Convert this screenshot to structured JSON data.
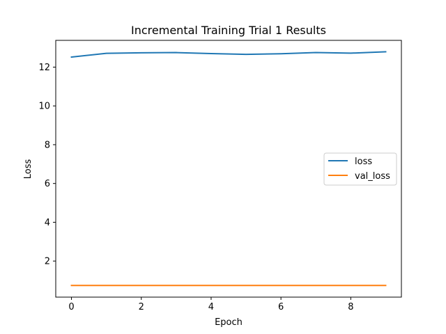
{
  "chart_data": {
    "type": "line",
    "title": "Incremental Training Trial 1 Results",
    "xlabel": "Epoch",
    "ylabel": "Loss",
    "x": [
      0,
      1,
      2,
      3,
      4,
      5,
      6,
      7,
      8,
      9
    ],
    "series": [
      {
        "name": "loss",
        "color": "#1f77b4",
        "values": [
          12.52,
          12.71,
          12.74,
          12.75,
          12.7,
          12.66,
          12.69,
          12.75,
          12.72,
          12.79
        ]
      },
      {
        "name": "val_loss",
        "color": "#ff7f0e",
        "values": [
          0.74,
          0.74,
          0.74,
          0.74,
          0.74,
          0.74,
          0.74,
          0.74,
          0.74,
          0.74
        ]
      }
    ],
    "xlim": [
      -0.45,
      9.45
    ],
    "ylim": [
      0.14,
      13.38
    ],
    "xticks": [
      0,
      2,
      4,
      6,
      8
    ],
    "yticks": [
      2,
      4,
      6,
      8,
      10,
      12
    ],
    "grid": false,
    "legend_position": "center-right"
  }
}
